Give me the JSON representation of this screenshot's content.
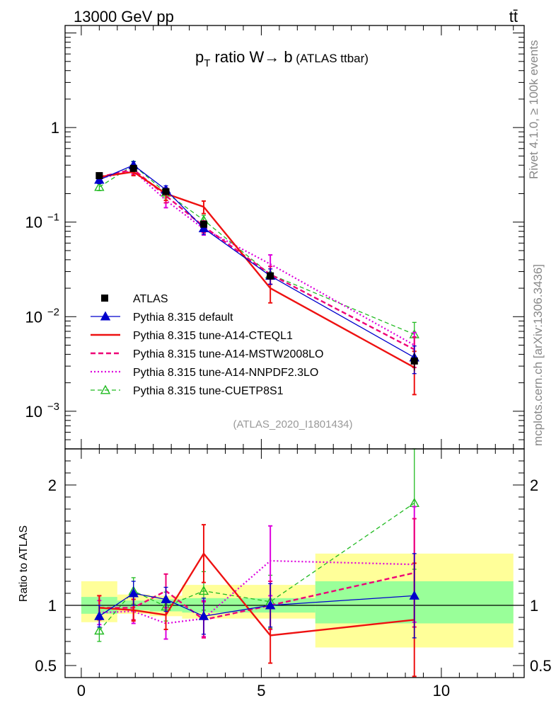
{
  "header": {
    "energy_label": "13000 GeV pp",
    "process_label": "tt̄"
  },
  "side": {
    "rivet": "Rivet 4.1.0, ≥ 100k events",
    "mcplots": "mcplots.cern.ch [arXiv:1306.3436]"
  },
  "chart_data": {
    "type": "line",
    "title_parts": {
      "p": "p",
      "sub": "T",
      "rest": " ratio W",
      "arrow": "→",
      "b": " b",
      "small": " (ATLAS ttbar)"
    },
    "analysis_id": "(ATLAS_2020_I1801434)",
    "ratio_ylabel": "Ratio to ATLAS",
    "x_range": [
      -0.45,
      12.3
    ],
    "main_y_range_log": [
      0.0004,
      12
    ],
    "ratio_y_range": [
      0.4,
      2.3
    ],
    "x_ticks": [
      {
        "v": 0,
        "l": "0"
      },
      {
        "v": 5,
        "l": "5"
      },
      {
        "v": 10,
        "l": "10"
      }
    ],
    "main_y_ticks": [
      {
        "v": 1,
        "base": "1",
        "exp": ""
      },
      {
        "v": 0.1,
        "base": "10",
        "exp": "−1"
      },
      {
        "v": 0.01,
        "base": "10",
        "exp": "−2"
      },
      {
        "v": 0.001,
        "base": "10",
        "exp": "−3"
      }
    ],
    "ratio_y_ticks": [
      {
        "v": 2,
        "l": "2"
      },
      {
        "v": 1,
        "l": "1"
      },
      {
        "v": 0.5,
        "l": "0.5"
      }
    ],
    "bins": [
      [
        0,
        1
      ],
      [
        1,
        1.9
      ],
      [
        1.9,
        2.8
      ],
      [
        2.8,
        4
      ],
      [
        4,
        6.5
      ],
      [
        6.5,
        12
      ]
    ],
    "x_points": [
      0.5,
      1.45,
      2.35,
      3.4,
      5.25,
      9.25
    ],
    "band_inner": [
      [
        0.93,
        1.07
      ],
      [
        0.96,
        1.04
      ],
      [
        0.95,
        1.05
      ],
      [
        0.94,
        1.06
      ],
      [
        0.94,
        1.06
      ],
      [
        0.85,
        1.2
      ]
    ],
    "band_outer": [
      [
        0.86,
        1.2
      ],
      [
        0.93,
        1.09
      ],
      [
        0.91,
        1.08
      ],
      [
        0.89,
        1.17
      ],
      [
        0.89,
        1.17
      ],
      [
        0.65,
        1.43
      ]
    ],
    "data": {
      "name": "ATLAS",
      "values": [
        0.31,
        0.37,
        0.21,
        0.095,
        0.027,
        0.0034
      ],
      "errors": [
        0.015,
        0.015,
        0.01,
        0.006,
        0.0025,
        0.0007
      ]
    },
    "series": [
      {
        "name": "Pythia 8.315 default",
        "color": "#0000cc",
        "dash": "",
        "width": 1.3,
        "marker": "triangle-filled",
        "values": [
          0.28,
          0.4,
          0.22,
          0.086,
          0.027,
          0.0037
        ],
        "errors": [
          0.025,
          0.035,
          0.022,
          0.012,
          0.005,
          0.0012
        ],
        "ratio": [
          0.91,
          1.1,
          1.05,
          0.91,
          1.0,
          1.08
        ],
        "ratio_err": [
          0.09,
          0.1,
          0.1,
          0.15,
          0.18,
          0.35
        ]
      },
      {
        "name": "Pythia 8.315 tune-A14-CTEQL1",
        "color": "#ee1111",
        "dash": "",
        "width": 2.4,
        "marker": "none",
        "values": [
          0.3,
          0.34,
          0.2,
          0.145,
          0.02,
          0.0029
        ],
        "errors": [
          0.03,
          0.03,
          0.03,
          0.022,
          0.006,
          0.0014
        ],
        "ratio": [
          0.98,
          0.96,
          0.92,
          1.43,
          0.75,
          0.88
        ],
        "ratio_err": [
          0.1,
          0.09,
          0.12,
          0.24,
          0.23,
          0.47
        ]
      },
      {
        "name": "Pythia 8.315 tune-A14-MSTW2008LO",
        "color": "#ee0077",
        "dash": "7,4",
        "width": 2.4,
        "marker": "none",
        "values": [
          0.3,
          0.36,
          0.19,
          0.09,
          0.028,
          0.0045
        ],
        "errors": [
          0.03,
          0.035,
          0.03,
          0.013,
          0.006,
          0.0016
        ],
        "ratio": [
          0.98,
          0.98,
          1.12,
          0.88,
          1.0,
          1.27
        ],
        "ratio_err": [
          0.1,
          0.1,
          0.14,
          0.15,
          0.2,
          0.45
        ]
      },
      {
        "name": "Pythia 8.315 tune-A14-NNPDF2.3LO",
        "color": "#dd00dd",
        "dash": "2,3",
        "width": 2.2,
        "marker": "none",
        "values": [
          0.29,
          0.35,
          0.17,
          0.085,
          0.036,
          0.005
        ],
        "errors": [
          0.03,
          0.035,
          0.028,
          0.012,
          0.009,
          0.0018
        ],
        "ratio": [
          0.94,
          0.95,
          0.85,
          0.89,
          1.37,
          1.34
        ],
        "ratio_err": [
          0.1,
          0.1,
          0.13,
          0.15,
          0.29,
          0.48
        ]
      },
      {
        "name": "Pythia 8.315 tune-CUETP8S1",
        "color": "#22bb22",
        "dash": "6,4",
        "width": 1.3,
        "marker": "triangle-open",
        "values": [
          0.235,
          0.4,
          0.205,
          0.105,
          0.028,
          0.0065
        ],
        "errors": [
          0.02,
          0.04,
          0.025,
          0.013,
          0.006,
          0.0022
        ],
        "ratio": [
          0.79,
          1.12,
          0.99,
          1.12,
          1.03,
          1.85
        ],
        "ratio_err": [
          0.09,
          0.11,
          0.12,
          0.16,
          0.22,
          0.55
        ]
      }
    ]
  }
}
